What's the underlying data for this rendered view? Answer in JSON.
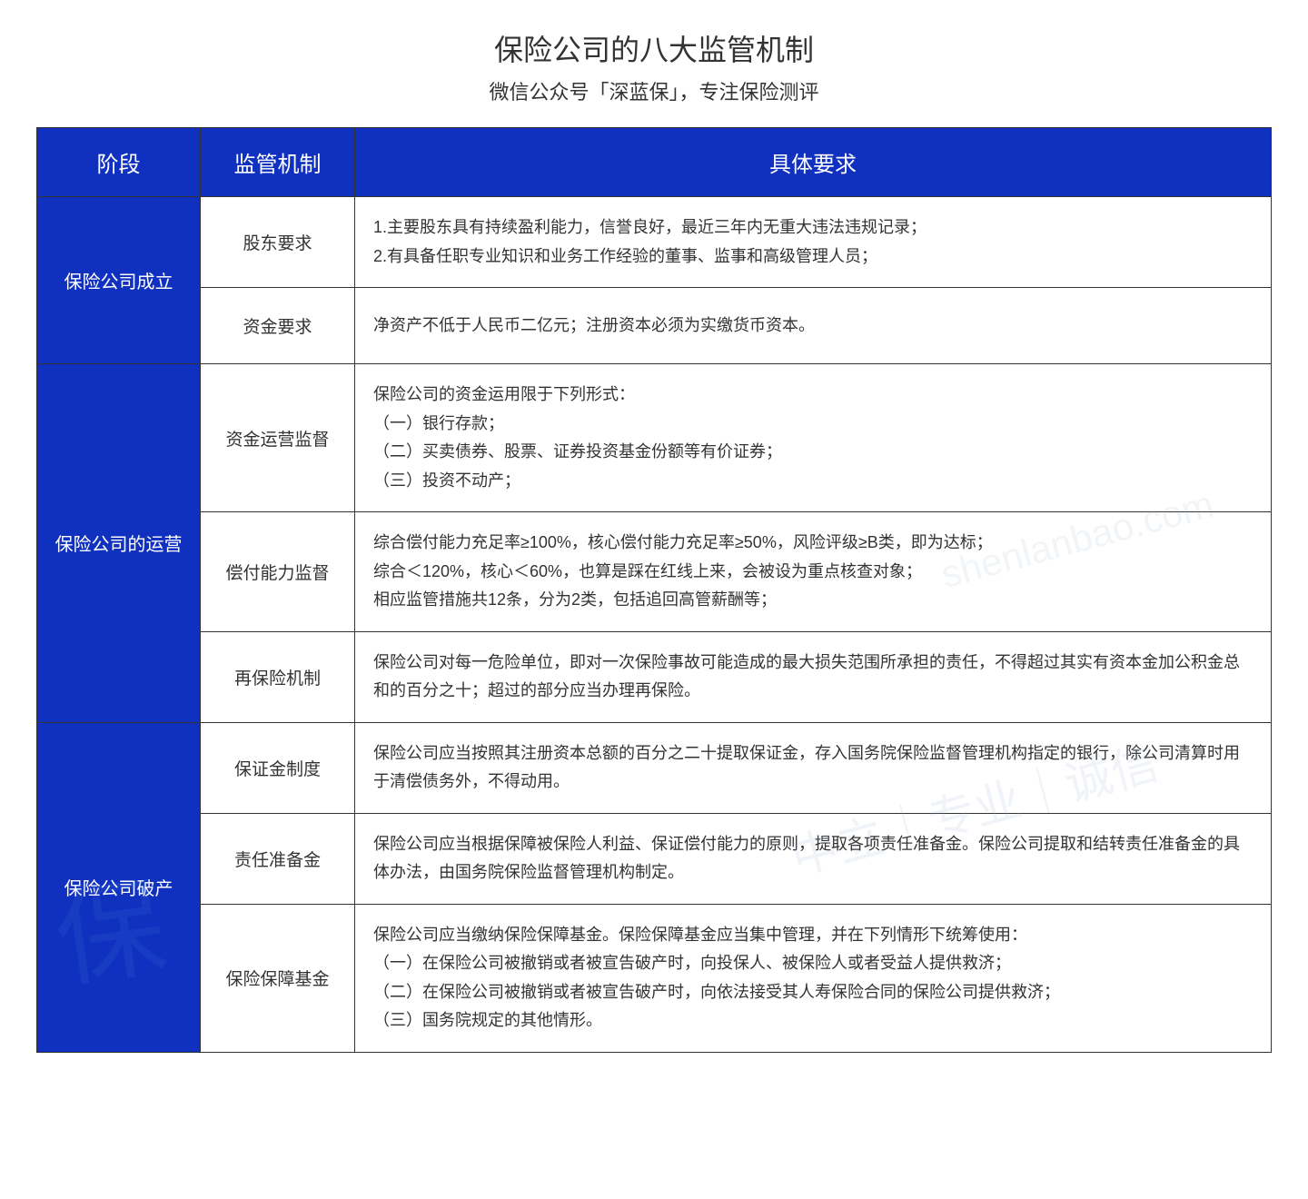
{
  "title": "保险公司的八大监管机制",
  "subtitle": "微信公众号「深蓝保」，专注保险测评",
  "headers": {
    "stage": "阶段",
    "mechanism": "监管机制",
    "detail": "具体要求"
  },
  "sections": [
    {
      "stage": "保险公司成立",
      "rows": [
        {
          "mechanism": "股东要求",
          "detail": "1.主要股东具有持续盈利能力，信誉良好，最近三年内无重大违法违规记录；\n2.有具备任职专业知识和业务工作经验的董事、监事和高级管理人员；"
        },
        {
          "mechanism": "资金要求",
          "detail": "净资产不低于人民币二亿元；注册资本必须为实缴货币资本。"
        }
      ]
    },
    {
      "stage": "保险公司的运营",
      "rows": [
        {
          "mechanism": "资金运营监督",
          "detail": "保险公司的资金运用限于下列形式：\n（一）银行存款；\n（二）买卖债券、股票、证券投资基金份额等有价证券；\n（三）投资不动产；"
        },
        {
          "mechanism": "偿付能力监督",
          "detail": "综合偿付能力充足率≥100%，核心偿付能力充足率≥50%，风险评级≥B类，即为达标；\n综合＜120%，核心＜60%，也算是踩在红线上来，会被设为重点核查对象；\n相应监管措施共12条，分为2类，包括追回高管薪酬等；"
        },
        {
          "mechanism": "再保险机制",
          "detail": "保险公司对每一危险单位，即对一次保险事故可能造成的最大损失范围所承担的责任，不得超过其实有资本金加公积金总和的百分之十；超过的部分应当办理再保险。"
        }
      ]
    },
    {
      "stage": "保险公司破产",
      "rows": [
        {
          "mechanism": "保证金制度",
          "detail": "保险公司应当按照其注册资本总额的百分之二十提取保证金，存入国务院保险监督管理机构指定的银行，除公司清算时用于清偿债务外，不得动用。"
        },
        {
          "mechanism": "责任准备金",
          "detail": "保险公司应当根据保障被保险人利益、保证偿付能力的原则，提取各项责任准备金。保险公司提取和结转责任准备金的具体办法，由国务院保险监督管理机构制定。"
        },
        {
          "mechanism": "保险保障基金",
          "detail": "保险公司应当缴纳保险保障基金。保险保障基金应当集中管理，并在下列情形下统筹使用：\n（一）在保险公司被撤销或者被宣告破产时，向投保人、被保险人或者受益人提供救济；\n（二）在保险公司被撤销或者被宣告破产时，向依法接受其人寿保险合同的保险公司提供救济；\n（三）国务院规定的其他情形。"
        }
      ]
    }
  ],
  "watermarks": {
    "wm1": "shenlanbao.com",
    "wm2": "中立｜专业｜诚信",
    "wm3": "保"
  },
  "background_color": "#ffffff",
  "header_bg": "#1030c0",
  "header_fg": "#ffffff",
  "border_color": "#333333"
}
